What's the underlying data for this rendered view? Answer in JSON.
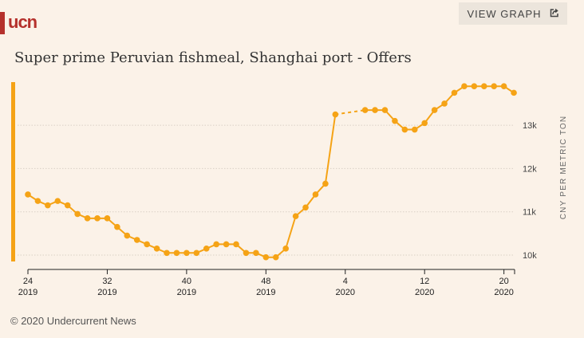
{
  "header": {
    "logo": "ucn",
    "view_graph_label": "VIEW GRAPH",
    "view_graph_icon": "external-link-icon"
  },
  "footer": {
    "copyright": "© 2020 Undercurrent News"
  },
  "colors": {
    "line": "#f5a316",
    "accent": "#b5312c"
  },
  "chart_data": {
    "type": "line",
    "title": "Super prime Peruvian fishmeal, Shanghai port - Offers",
    "xlabel": "",
    "ylabel": "CNY PER METRIC TON",
    "ylim": [
      9700,
      14000
    ],
    "yticks": [
      {
        "value": 10000,
        "label": "10k"
      },
      {
        "value": 11000,
        "label": "11k"
      },
      {
        "value": 12000,
        "label": "12k"
      },
      {
        "value": 13000,
        "label": "13k"
      }
    ],
    "xticks": [
      {
        "index": 0,
        "week": "24",
        "year": "2019"
      },
      {
        "index": 8,
        "week": "32",
        "year": "2019"
      },
      {
        "index": 16,
        "week": "40",
        "year": "2019"
      },
      {
        "index": 24,
        "week": "48",
        "year": "2019"
      },
      {
        "index": 32,
        "week": "4",
        "year": "2020"
      },
      {
        "index": 40,
        "week": "12",
        "year": "2020"
      },
      {
        "index": 48,
        "week": "20",
        "year": "2020"
      }
    ],
    "grid": true,
    "series": [
      {
        "name": "Offers",
        "segments": [
          {
            "start_index": 0,
            "values": [
              11400,
              11250,
              11150,
              11250,
              11150,
              10950,
              10850,
              10850,
              10850,
              10650,
              10450,
              10350,
              10250,
              10150,
              10050,
              10050,
              10050,
              10050,
              10150,
              10250,
              10250,
              10250,
              10050,
              10050,
              9950,
              9950,
              10150,
              10900,
              11100,
              11400,
              11650,
              13250
            ]
          },
          {
            "start_index": 34,
            "values": [
              13350,
              13350,
              13350,
              13100,
              12900,
              12900,
              13050,
              13350,
              13500,
              13750,
              13900,
              13900,
              13900,
              13900,
              13900,
              13750
            ]
          }
        ],
        "gap_style": "dashed"
      }
    ]
  }
}
